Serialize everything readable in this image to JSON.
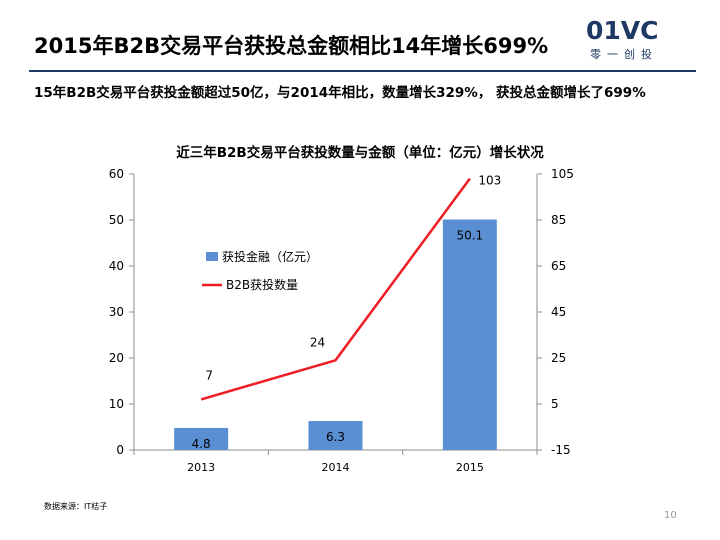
{
  "slide_title": "2015年B2B交易平台获投总金额相比14年增长699%",
  "logo": {
    "mark": "01VC",
    "sub": "零一创投",
    "color": "#1f3864"
  },
  "summary": "15年B2B交易平台获投金额超过50亿，与2014年相比，数量增长329%， 获投总金额增长了699%",
  "source": "数据来源：IT桔子",
  "page_number": "10",
  "chart_data": {
    "type": "bar",
    "title": "近三年B2B交易平台获投数量与金额（单位：亿元）增长状况",
    "categories": [
      "2013",
      "2014",
      "2015"
    ],
    "series": [
      {
        "name": "获投金融（亿元）",
        "type": "bar",
        "axis": "left",
        "values": [
          4.8,
          6.3,
          50.1
        ],
        "color": "#5b8fd4"
      },
      {
        "name": "B2B获投数量",
        "type": "line",
        "axis": "right",
        "values": [
          7,
          24,
          103
        ],
        "color": "#ee1c24"
      }
    ],
    "left_axis": {
      "min": 0,
      "max": 60,
      "ticks": [
        "0",
        "10",
        "20",
        "30",
        "40",
        "50",
        "60"
      ]
    },
    "right_axis": {
      "min": -15,
      "max": 105,
      "ticks": [
        "-15",
        "5",
        "25",
        "45",
        "65",
        "85",
        "105"
      ]
    },
    "grid": false,
    "legend_position": "inside-center"
  }
}
